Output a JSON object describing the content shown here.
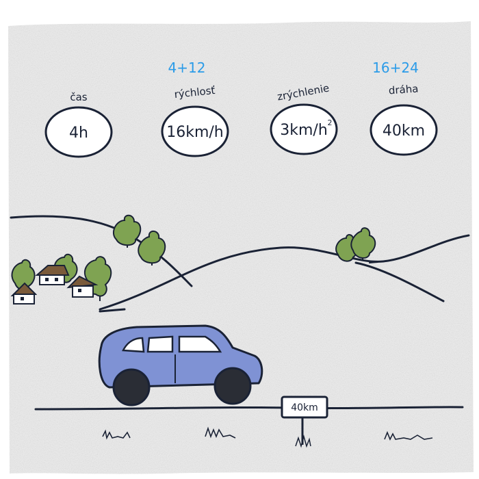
{
  "quantities": [
    {
      "label": "čas",
      "value": "4h",
      "note": ""
    },
    {
      "label": "rýchlosť",
      "value": "16km/h",
      "note": "4+12"
    },
    {
      "label": "zrýchlenie",
      "value": "3km/h",
      "value_sup": "2",
      "note": ""
    },
    {
      "label": "dráha",
      "value": "40km",
      "note": "16+24"
    }
  ],
  "road_sign": {
    "text": "40km"
  },
  "colors": {
    "paper": "#eeeeee",
    "ink": "#1a2235",
    "note": "#2a9be8",
    "car_body": "#7f92d4",
    "tire": "#2a2d35",
    "tree": "#7fa352"
  }
}
